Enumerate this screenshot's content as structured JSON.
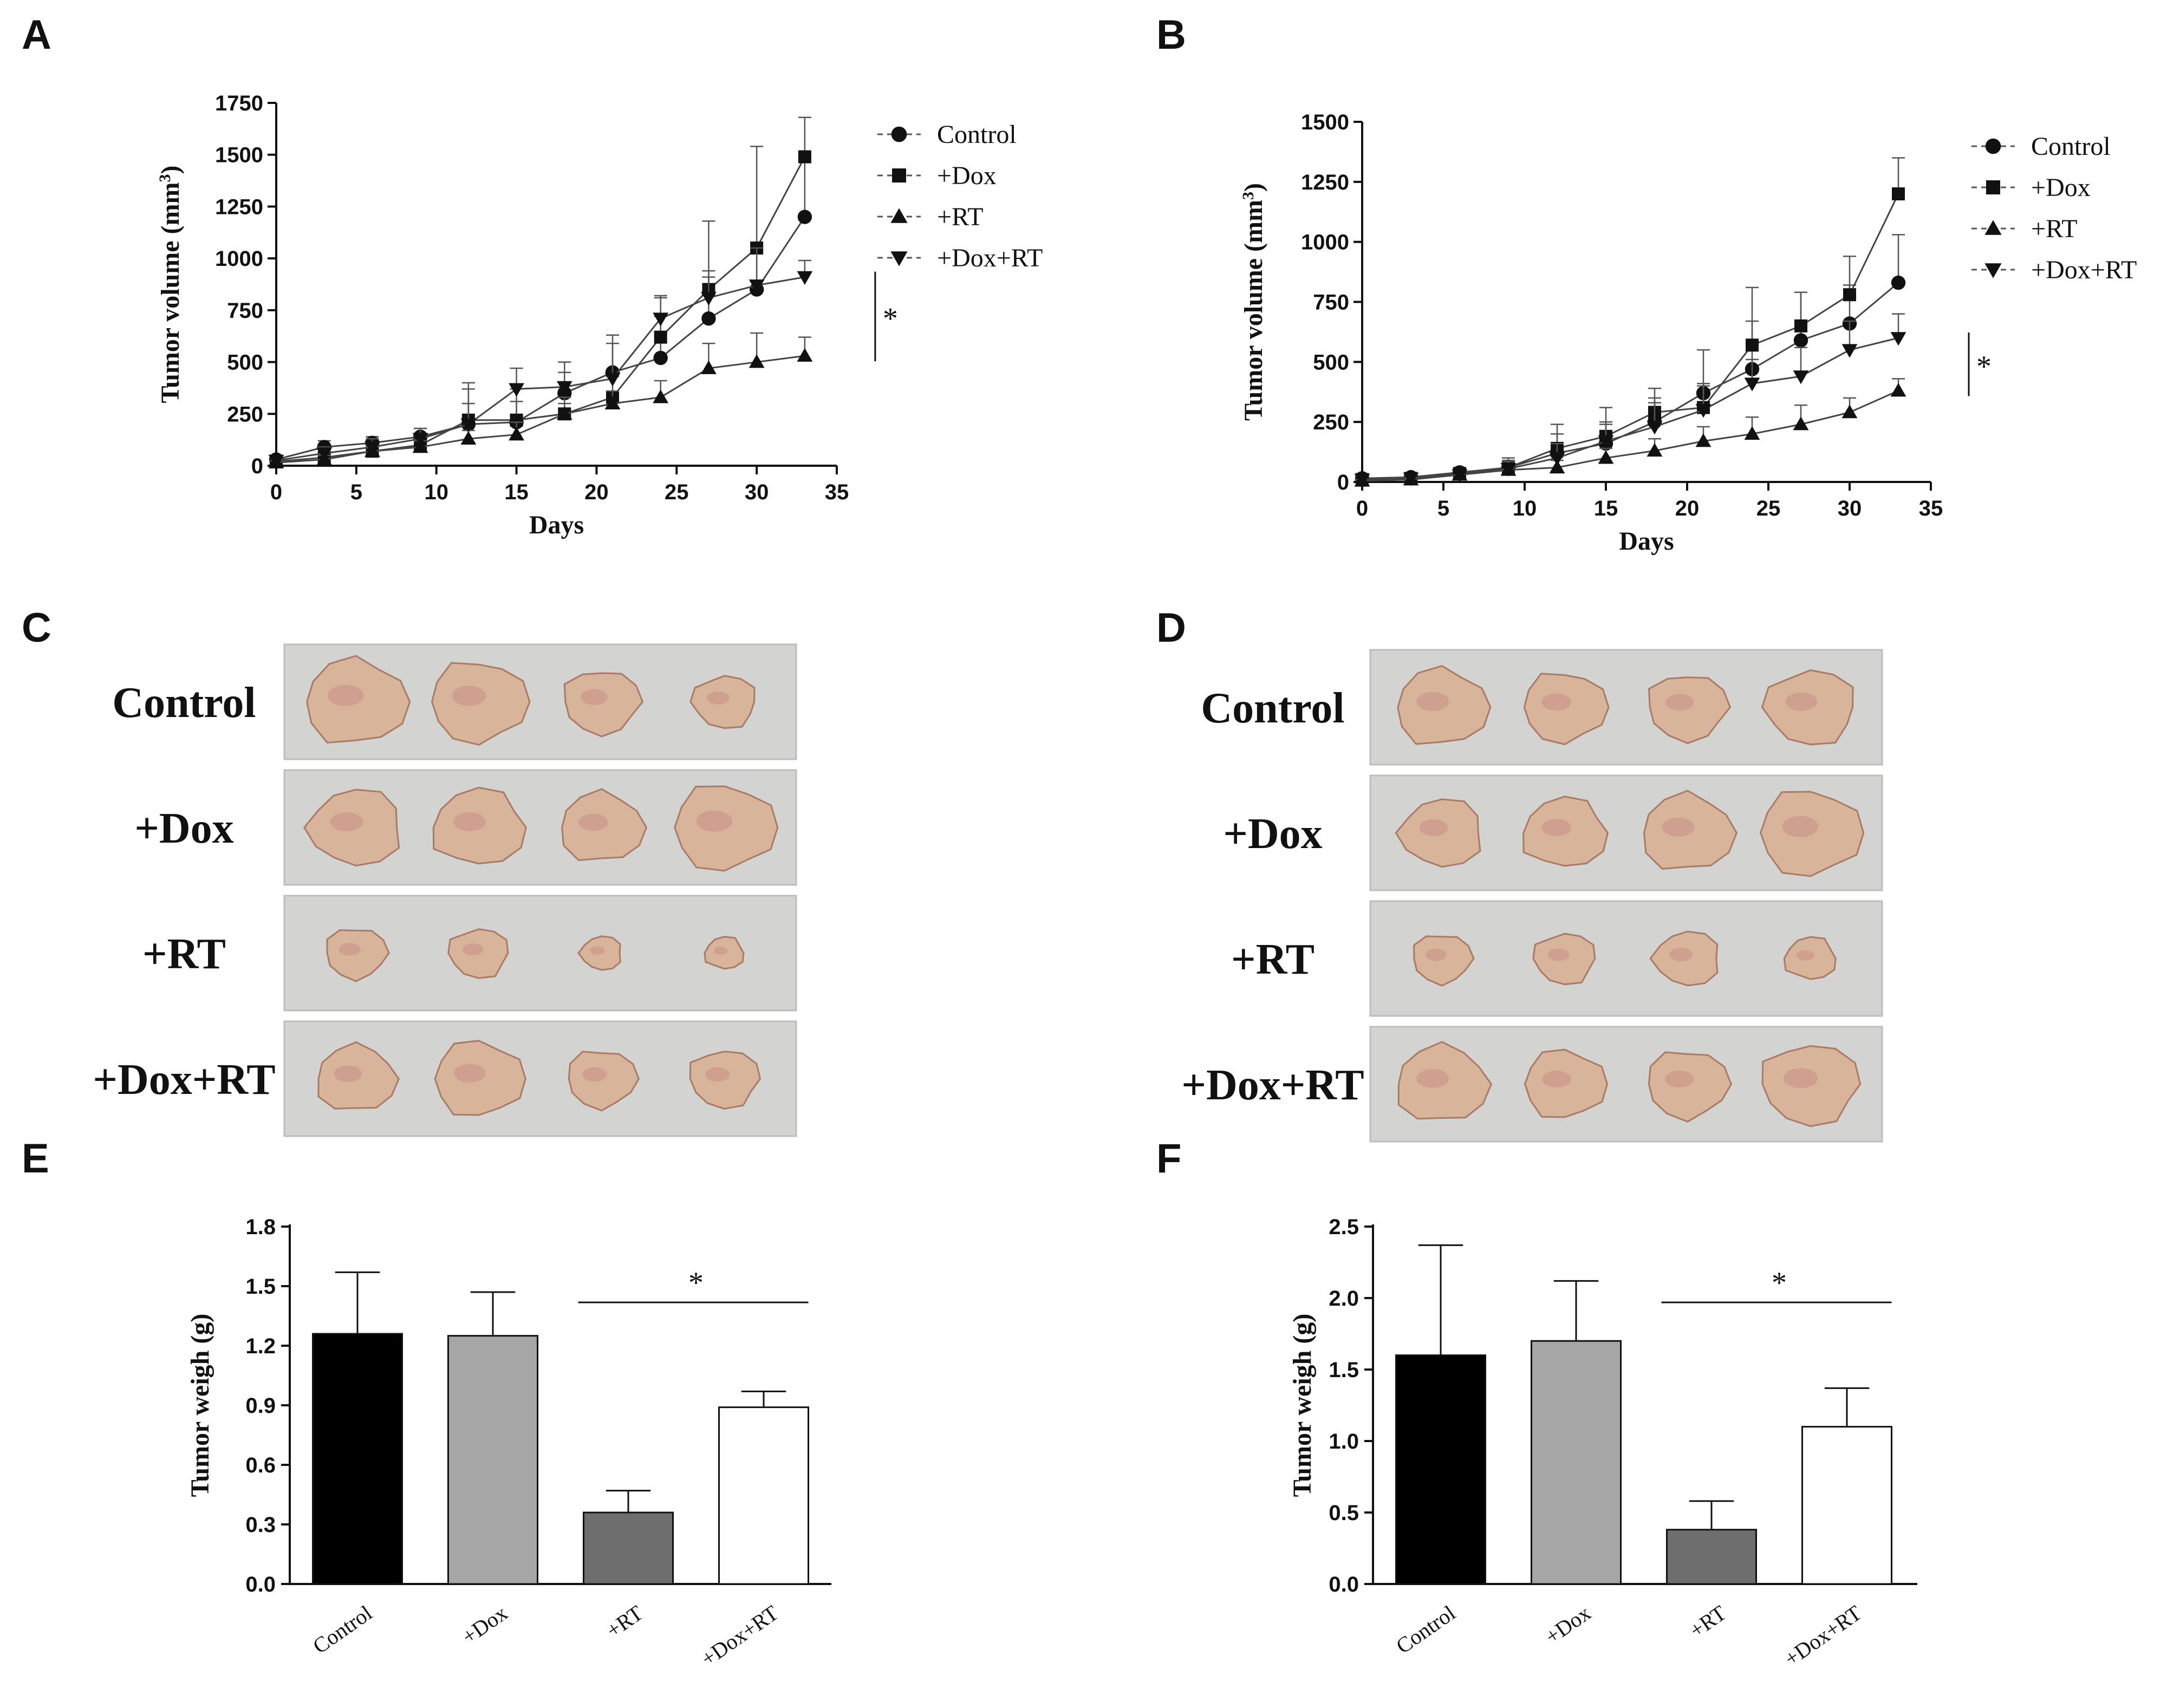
{
  "panels": {
    "A": "A",
    "B": "B",
    "C": "C",
    "D": "D",
    "E": "E",
    "F": "F"
  },
  "colors": {
    "ink": "#111111",
    "bar_control": "#000000",
    "bar_dox": "#a6a6a6",
    "bar_rt": "#6e6e6e",
    "bar_doxrt": "#ffffff",
    "photo_bg": "#d3d3d1",
    "tumor": "#d8b49a"
  },
  "chart_data": [
    {
      "panel": "A",
      "type": "line",
      "xlabel": "Days",
      "ylabel": "Tumor volume (mm3)",
      "ylabel_text": "Tumor volume (mm",
      "ylabel_sup": "3",
      "ylabel_close": ")",
      "xlim": [
        0,
        35
      ],
      "ylim": [
        0,
        1750
      ],
      "xticks": [
        0,
        5,
        10,
        15,
        20,
        25,
        30,
        35
      ],
      "yticks": [
        0,
        250,
        500,
        750,
        1000,
        1250,
        1500,
        1750
      ],
      "x": [
        0,
        3,
        6,
        9,
        12,
        15,
        18,
        21,
        24,
        27,
        30,
        33
      ],
      "legend_position": "top-right",
      "significance": "*",
      "series": [
        {
          "name": "Control",
          "marker": "circle",
          "values": [
            30,
            90,
            110,
            140,
            200,
            210,
            350,
            450,
            520,
            710,
            850,
            1200
          ],
          "errors": [
            15,
            30,
            30,
            40,
            100,
            100,
            100,
            140,
            200,
            200,
            200,
            300
          ]
        },
        {
          "name": "+Dox",
          "marker": "square",
          "values": [
            20,
            40,
            70,
            100,
            220,
            220,
            250,
            330,
            620,
            850,
            1050,
            1490
          ],
          "errors": [
            10,
            20,
            30,
            40,
            150,
            150,
            80,
            100,
            200,
            330,
            490,
            190
          ]
        },
        {
          "name": "+RT",
          "marker": "triangle-up",
          "values": [
            15,
            30,
            70,
            90,
            130,
            150,
            250,
            300,
            330,
            470,
            500,
            530
          ],
          "errors": [
            10,
            20,
            25,
            30,
            40,
            60,
            50,
            60,
            80,
            120,
            140,
            90
          ]
        },
        {
          "name": "+Dox+RT",
          "marker": "triangle-down",
          "values": [
            25,
            60,
            90,
            130,
            200,
            370,
            380,
            420,
            710,
            810,
            870,
            910
          ],
          "errors": [
            15,
            30,
            40,
            50,
            200,
            100,
            120,
            210,
            100,
            130,
            180,
            80
          ]
        }
      ]
    },
    {
      "panel": "B",
      "type": "line",
      "xlabel": "Days",
      "ylabel": "Tumor volume (mm3)",
      "ylabel_text": "Tumor volume (mm",
      "ylabel_sup": "3",
      "ylabel_close": ")",
      "xlim": [
        0,
        35
      ],
      "ylim": [
        0,
        1500
      ],
      "xticks": [
        0,
        5,
        10,
        15,
        20,
        25,
        30,
        35
      ],
      "yticks": [
        0,
        250,
        500,
        750,
        1000,
        1250,
        1500
      ],
      "x": [
        0,
        3,
        6,
        9,
        12,
        15,
        18,
        21,
        24,
        27,
        30,
        33
      ],
      "legend_position": "top-right",
      "significance": "*",
      "series": [
        {
          "name": "Control",
          "marker": "circle",
          "values": [
            15,
            20,
            40,
            60,
            120,
            160,
            250,
            370,
            470,
            590,
            660,
            830
          ],
          "errors": [
            10,
            15,
            20,
            30,
            80,
            80,
            100,
            180,
            200,
            200,
            160,
            200
          ]
        },
        {
          "name": "+Dox",
          "marker": "square",
          "values": [
            10,
            15,
            35,
            60,
            140,
            190,
            290,
            310,
            570,
            650,
            780,
            1200
          ],
          "errors": [
            10,
            15,
            20,
            40,
            100,
            120,
            100,
            100,
            240,
            140,
            160,
            150
          ]
        },
        {
          "name": "+RT",
          "marker": "triangle-up",
          "values": [
            5,
            10,
            30,
            50,
            60,
            100,
            130,
            170,
            200,
            240,
            290,
            380
          ],
          "errors": [
            5,
            10,
            15,
            20,
            30,
            40,
            50,
            60,
            70,
            80,
            60,
            50
          ]
        },
        {
          "name": "+Dox+RT",
          "marker": "triangle-down",
          "values": [
            10,
            15,
            30,
            55,
            100,
            170,
            230,
            300,
            410,
            440,
            550,
            600
          ],
          "errors": [
            10,
            15,
            20,
            30,
            60,
            80,
            100,
            100,
            100,
            120,
            120,
            100
          ]
        }
      ]
    },
    {
      "panel": "E",
      "type": "bar",
      "xlabel": "",
      "ylabel": "Tumor weigh (g)",
      "ylim": [
        0,
        1.8
      ],
      "yticks": [
        "0.0",
        "0.3",
        "0.6",
        "0.9",
        "1.2",
        "1.5",
        "1.8"
      ],
      "categories": [
        "Control",
        "+Dox",
        "+RT",
        "+Dox+RT"
      ],
      "values": [
        1.26,
        1.25,
        0.36,
        0.89
      ],
      "errors": [
        0.31,
        0.22,
        0.11,
        0.08
      ],
      "significance": "*"
    },
    {
      "panel": "F",
      "type": "bar",
      "xlabel": "",
      "ylabel": "Tumor weigh (g)",
      "ylim": [
        0,
        2.5
      ],
      "yticks": [
        "0.0",
        "0.5",
        "1.0",
        "1.5",
        "2.0",
        "2.5"
      ],
      "categories": [
        "Control",
        "+Dox",
        "+RT",
        "+Dox+RT"
      ],
      "values": [
        1.6,
        1.7,
        0.38,
        1.1
      ],
      "errors": [
        0.77,
        0.42,
        0.2,
        0.27
      ],
      "significance": "*"
    }
  ],
  "photos": {
    "C": {
      "rows": [
        "Control",
        "+Dox",
        "+RT",
        "+Dox+RT"
      ],
      "tumor_size": [
        [
          1.0,
          0.95,
          0.75,
          0.62
        ],
        [
          0.9,
          0.9,
          0.82,
          1.0
        ],
        [
          0.6,
          0.58,
          0.4,
          0.38
        ],
        [
          0.78,
          0.88,
          0.68,
          0.68
        ]
      ]
    },
    "D": {
      "rows": [
        "Control",
        "+Dox",
        "+RT",
        "+Dox+RT"
      ],
      "tumor_size": [
        [
          0.9,
          0.82,
          0.78,
          0.88
        ],
        [
          0.8,
          0.82,
          0.9,
          1.0
        ],
        [
          0.58,
          0.6,
          0.64,
          0.5
        ],
        [
          0.9,
          0.8,
          0.8,
          0.95
        ]
      ]
    }
  }
}
